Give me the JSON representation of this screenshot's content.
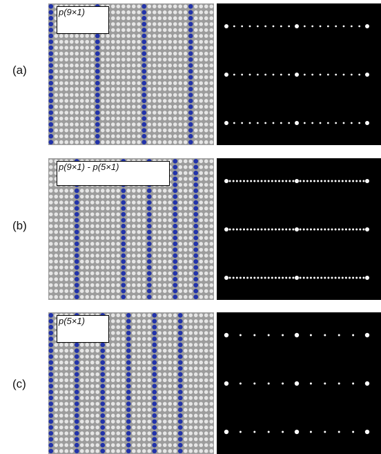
{
  "panels": [
    {
      "id": "a",
      "row_label": "(a)",
      "structure_label": "p(9×1)",
      "blue_columns": [
        0,
        9,
        18,
        27
      ],
      "ring_columns": []
    },
    {
      "id": "b",
      "row_label": "(b)",
      "structure_label": "p(9×1) - p(5×1)",
      "blue_columns": [
        5,
        14,
        19,
        24,
        28
      ],
      "ring_columns": []
    },
    {
      "id": "c",
      "row_label": "(c)",
      "structure_label": "p(5×1)",
      "blue_columns": [
        0,
        5,
        10,
        15,
        20,
        25
      ],
      "ring_columns": []
    }
  ],
  "colors": {
    "substrate": "#9c9c9c",
    "atom_white": "#e6e6e6",
    "atom_blue": "#2233aa",
    "diffraction_bg": "#000000",
    "spot": "#ffffff"
  }
}
